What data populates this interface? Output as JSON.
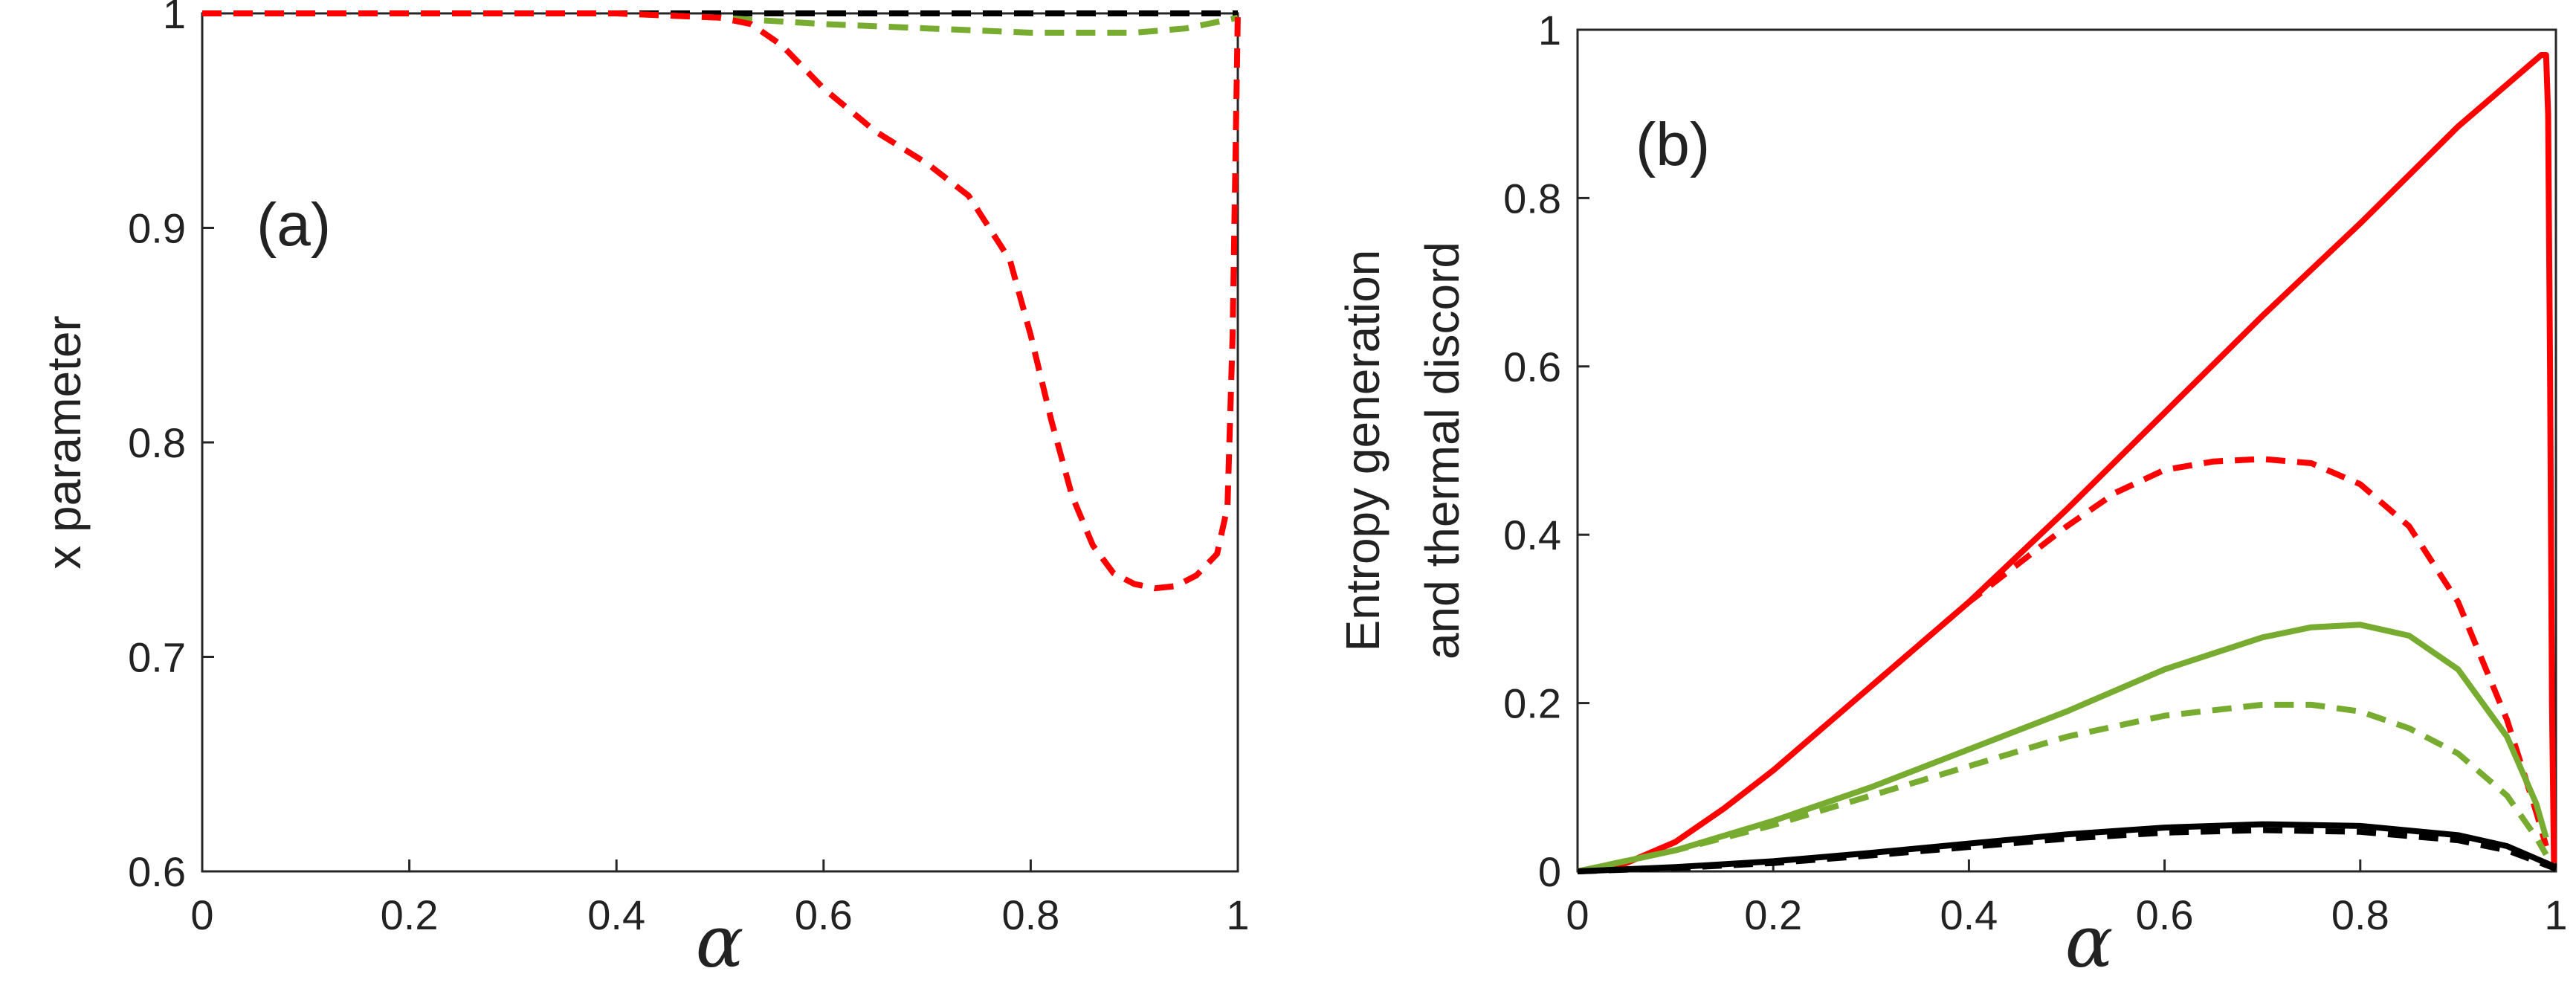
{
  "chart_data": [
    {
      "panel": "a",
      "type": "line",
      "panel_label": "(a)",
      "ylabel": "x parameter",
      "xlabel": "α",
      "xlim": [
        0,
        1
      ],
      "ylim": [
        0.6,
        1.0
      ],
      "xticks": [
        0,
        0.2,
        0.4,
        0.6,
        0.8,
        1
      ],
      "xtick_labels": [
        "0",
        "0.2",
        "0.4",
        "0.6",
        "0.8",
        "1"
      ],
      "yticks": [
        0.6,
        0.7,
        0.8,
        0.9,
        1.0
      ],
      "ytick_labels": [
        "0.6",
        "0.7",
        "0.8",
        "0.9",
        "1"
      ],
      "series": [
        {
          "name": "black dashed",
          "color": "#000000",
          "style": "dashed",
          "x": [
            0,
            0.2,
            0.4,
            0.6,
            0.8,
            1.0
          ],
          "y": [
            1.0,
            1.0,
            1.0,
            1.0,
            1.0,
            1.0
          ]
        },
        {
          "name": "green dashed",
          "color": "#77ac30",
          "style": "dashed",
          "x": [
            0,
            0.2,
            0.4,
            0.5,
            0.6,
            0.7,
            0.8,
            0.9,
            0.95,
            1.0
          ],
          "y": [
            1.0,
            1.0,
            1.0,
            0.998,
            0.995,
            0.993,
            0.991,
            0.991,
            0.993,
            0.998
          ]
        },
        {
          "name": "red dashed",
          "color": "#ff0000",
          "style": "dashed",
          "x": [
            0,
            0.2,
            0.4,
            0.5,
            0.53,
            0.56,
            0.6,
            0.65,
            0.7,
            0.74,
            0.78,
            0.8,
            0.82,
            0.84,
            0.86,
            0.88,
            0.9,
            0.92,
            0.94,
            0.96,
            0.98,
            0.99,
            0.995,
            1.0
          ],
          "y": [
            1.0,
            1.0,
            1.0,
            0.998,
            0.995,
            0.985,
            0.965,
            0.945,
            0.93,
            0.915,
            0.885,
            0.85,
            0.81,
            0.775,
            0.752,
            0.739,
            0.734,
            0.732,
            0.733,
            0.738,
            0.748,
            0.77,
            0.85,
            1.0
          ]
        }
      ]
    },
    {
      "panel": "b",
      "type": "line",
      "panel_label": "(b)",
      "ylabel_lines": [
        "Entropy generation",
        "and thermal discord"
      ],
      "xlabel": "α",
      "xlim": [
        0,
        1
      ],
      "ylim": [
        0,
        1
      ],
      "xticks": [
        0,
        0.2,
        0.4,
        0.6,
        0.8,
        1
      ],
      "xtick_labels": [
        "0",
        "0.2",
        "0.4",
        "0.6",
        "0.8",
        "1"
      ],
      "yticks": [
        0,
        0.2,
        0.4,
        0.6,
        0.8,
        1
      ],
      "ytick_labels": [
        "0",
        "0.2",
        "0.4",
        "0.6",
        "0.8",
        "1"
      ],
      "series": [
        {
          "name": "red solid",
          "color": "#ff0000",
          "style": "solid",
          "x": [
            0,
            0.05,
            0.1,
            0.15,
            0.2,
            0.3,
            0.4,
            0.5,
            0.6,
            0.7,
            0.8,
            0.9,
            0.95,
            0.975,
            0.985,
            0.99,
            0.992,
            0.994,
            0.996,
            0.998
          ],
          "y": [
            0,
            0.01,
            0.035,
            0.075,
            0.12,
            0.22,
            0.32,
            0.43,
            0.545,
            0.66,
            0.77,
            0.885,
            0.935,
            0.96,
            0.97,
            0.97,
            0.9,
            0.6,
            0.2,
            0.01
          ]
        },
        {
          "name": "red dashed",
          "color": "#ff0000",
          "style": "dashed",
          "x": [
            0.3,
            0.4,
            0.5,
            0.55,
            0.6,
            0.65,
            0.7,
            0.75,
            0.8,
            0.85,
            0.9,
            0.95,
            0.98,
            0.99
          ],
          "y": [
            0.22,
            0.32,
            0.41,
            0.45,
            0.477,
            0.487,
            0.49,
            0.485,
            0.46,
            0.41,
            0.32,
            0.18,
            0.07,
            0.03
          ]
        },
        {
          "name": "green solid",
          "color": "#77ac30",
          "style": "solid",
          "x": [
            0,
            0.1,
            0.2,
            0.3,
            0.4,
            0.5,
            0.6,
            0.7,
            0.75,
            0.8,
            0.85,
            0.9,
            0.95,
            0.98,
            0.99
          ],
          "y": [
            0,
            0.025,
            0.06,
            0.1,
            0.145,
            0.19,
            0.24,
            0.278,
            0.29,
            0.293,
            0.28,
            0.24,
            0.16,
            0.08,
            0.04
          ]
        },
        {
          "name": "green dashed",
          "color": "#77ac30",
          "style": "dashed",
          "x": [
            0,
            0.1,
            0.2,
            0.3,
            0.4,
            0.5,
            0.6,
            0.7,
            0.75,
            0.8,
            0.85,
            0.9,
            0.95,
            0.98,
            0.99
          ],
          "y": [
            0,
            0.025,
            0.055,
            0.09,
            0.125,
            0.16,
            0.185,
            0.198,
            0.198,
            0.19,
            0.17,
            0.14,
            0.09,
            0.04,
            0.02
          ]
        },
        {
          "name": "black solid",
          "color": "#000000",
          "style": "solid",
          "x": [
            0,
            0.1,
            0.2,
            0.3,
            0.4,
            0.5,
            0.6,
            0.7,
            0.8,
            0.9,
            0.95,
            0.98,
            1.0
          ],
          "y": [
            0,
            0.005,
            0.012,
            0.022,
            0.033,
            0.044,
            0.052,
            0.056,
            0.054,
            0.043,
            0.03,
            0.015,
            0.005
          ]
        },
        {
          "name": "black dashed",
          "color": "#000000",
          "style": "dashed",
          "x": [
            0,
            0.1,
            0.2,
            0.3,
            0.4,
            0.5,
            0.6,
            0.7,
            0.8,
            0.9,
            0.95,
            0.98,
            1.0
          ],
          "y": [
            0,
            0.004,
            0.01,
            0.019,
            0.029,
            0.039,
            0.046,
            0.049,
            0.047,
            0.037,
            0.025,
            0.012,
            0.003
          ]
        }
      ]
    }
  ]
}
